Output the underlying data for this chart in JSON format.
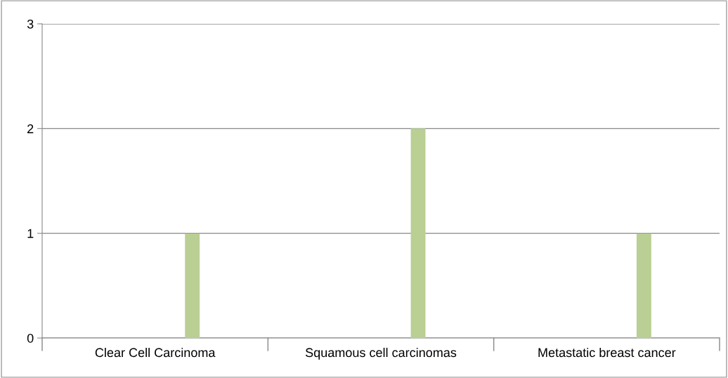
{
  "chart_data": {
    "type": "bar",
    "categories": [
      "Clear Cell Carcinoma",
      "Squamous cell carcinomas",
      "Metastatic breast cancer"
    ],
    "values": [
      1,
      2,
      1
    ],
    "color": "#b9cf93",
    "ylim": [
      0,
      3
    ],
    "yticks": [
      0,
      1,
      2,
      3
    ],
    "grid": "y"
  }
}
